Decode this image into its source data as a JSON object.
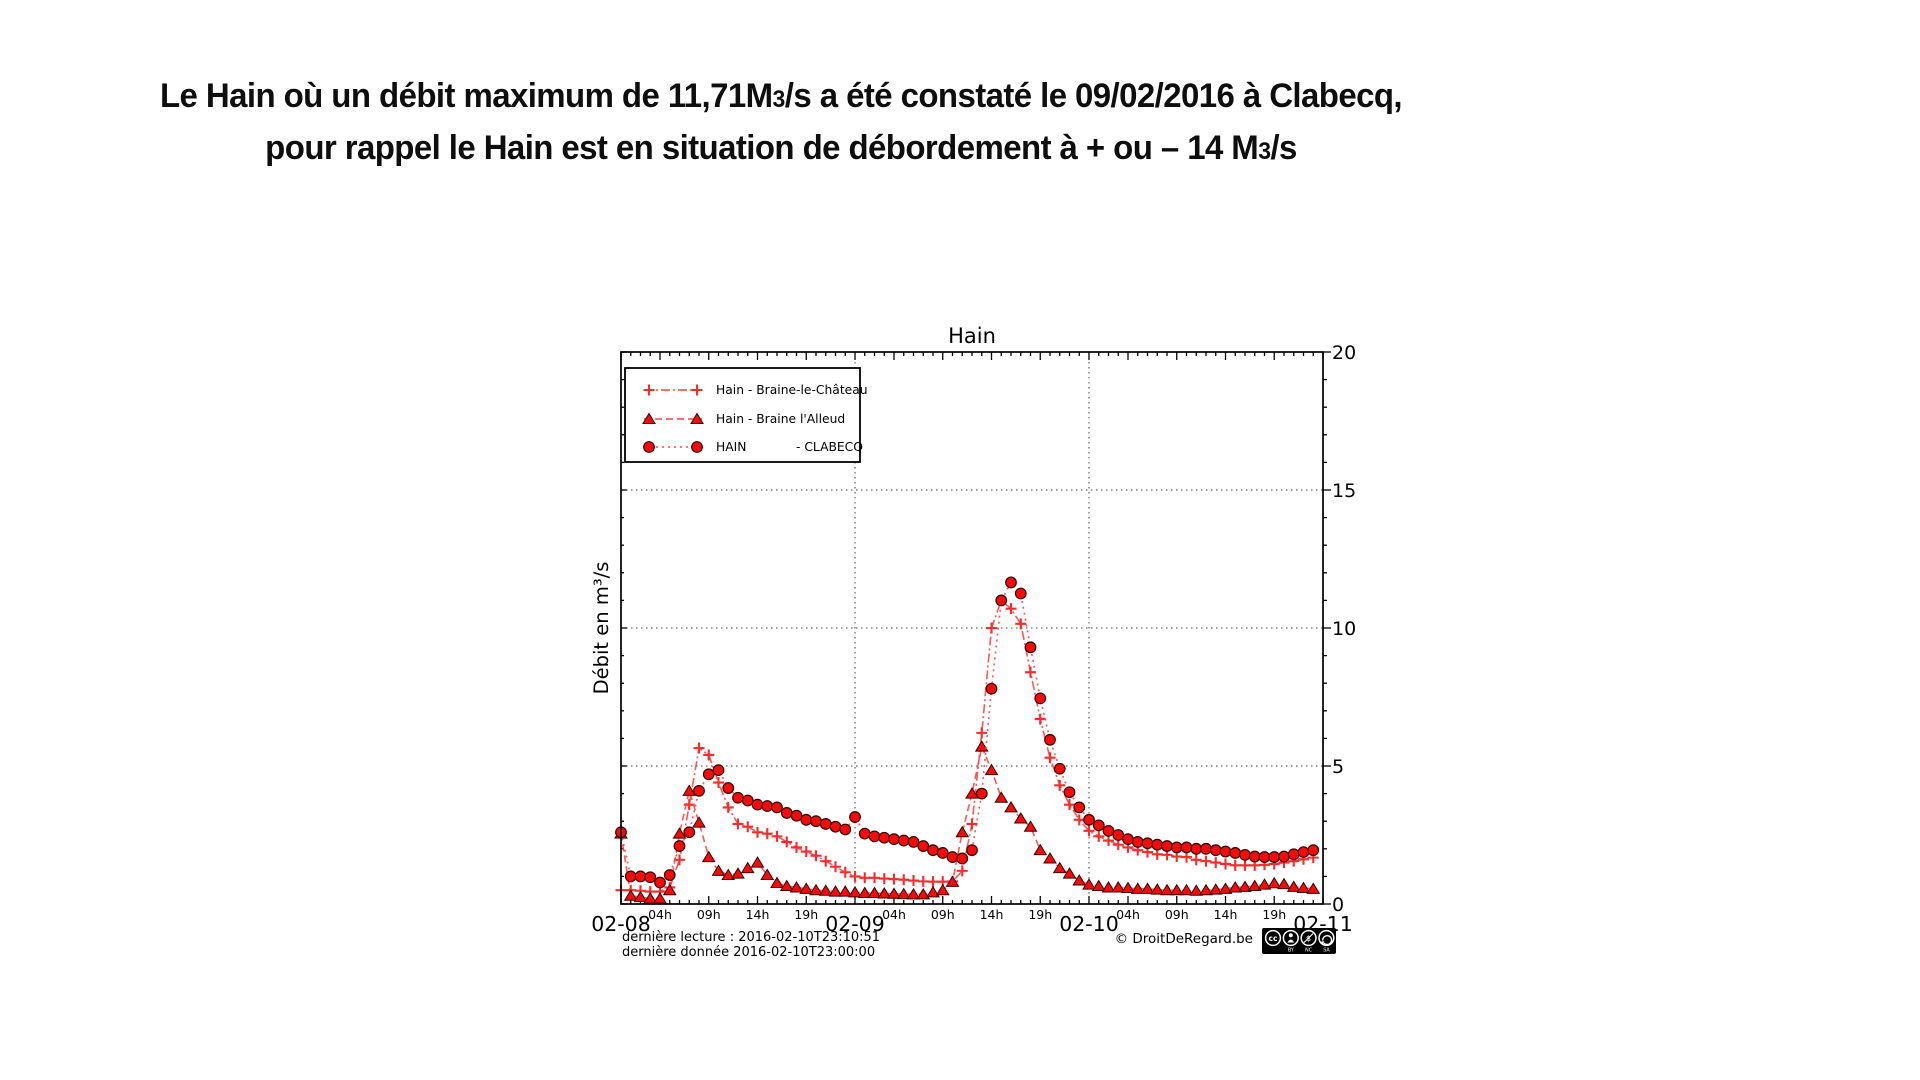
{
  "page_title": {
    "line1_pre": "Le Hain où un débit maximum de 11,71M",
    "line1_small": "3",
    "line1_post": "/s a été constaté le 09/02/2016 à Clabecq,",
    "line2_pre": "pour rappel le Hain est en situation de débordement à + ou – 14 M",
    "line2_small": "3",
    "line2_post": "/s"
  },
  "chart_data": {
    "type": "line",
    "title": "Hain",
    "ylabel": "Débit en m³/s",
    "ylim": [
      0,
      20
    ],
    "yticks": [
      0,
      5,
      10,
      15,
      20
    ],
    "grid": "dotted, major only, both axes",
    "legend_position": "upper left",
    "x_start_label": "02-08",
    "x_day_labels": [
      "02-08",
      "02-09",
      "02-10",
      "02-11"
    ],
    "x_hour_tick_labels": [
      "04h",
      "09h",
      "14h",
      "19h"
    ],
    "x_unit": "hours since 2016-02-08 00:00, 1 point per hour",
    "series": [
      {
        "name": "Hain - Braine-le-Château",
        "marker": "plus",
        "values": [
          0.5,
          0.5,
          0.48,
          0.45,
          0.45,
          0.6,
          1.6,
          3.6,
          5.65,
          5.4,
          4.4,
          3.5,
          2.9,
          2.8,
          2.6,
          2.55,
          2.45,
          2.25,
          2.05,
          1.9,
          1.75,
          1.55,
          1.35,
          1.15,
          1.0,
          0.95,
          0.95,
          0.92,
          0.9,
          0.88,
          0.85,
          0.82,
          0.81,
          0.81,
          0.82,
          1.2,
          2.9,
          6.2,
          10.0,
          11.0,
          10.7,
          10.15,
          8.4,
          6.7,
          5.3,
          4.3,
          3.6,
          3.05,
          2.65,
          2.45,
          2.3,
          2.15,
          2.05,
          1.95,
          1.88,
          1.8,
          1.78,
          1.72,
          1.7,
          1.6,
          1.55,
          1.5,
          1.45,
          1.4,
          1.4,
          1.4,
          1.42,
          1.45,
          1.5,
          1.55,
          1.62,
          1.68
        ]
      },
      {
        "name": "Hain - Braine l'Alleud",
        "marker": "triangle",
        "values": [
          2.55,
          0.3,
          0.25,
          0.2,
          0.2,
          0.5,
          2.55,
          4.1,
          2.95,
          1.7,
          1.2,
          1.05,
          1.1,
          1.3,
          1.5,
          1.05,
          0.76,
          0.65,
          0.6,
          0.55,
          0.5,
          0.48,
          0.45,
          0.45,
          0.42,
          0.4,
          0.4,
          0.38,
          0.37,
          0.36,
          0.35,
          0.35,
          0.42,
          0.5,
          0.8,
          2.6,
          4.0,
          5.7,
          4.85,
          3.85,
          3.5,
          3.1,
          2.8,
          1.95,
          1.65,
          1.3,
          1.1,
          0.85,
          0.7,
          0.65,
          0.6,
          0.6,
          0.58,
          0.55,
          0.55,
          0.52,
          0.5,
          0.5,
          0.5,
          0.48,
          0.5,
          0.52,
          0.55,
          0.6,
          0.62,
          0.65,
          0.7,
          0.75,
          0.72,
          0.62,
          0.58,
          0.55
        ]
      },
      {
        "name": "HAIN",
        "name2": "- CLABECQ",
        "marker": "circle",
        "values": [
          2.6,
          1.0,
          1.0,
          0.97,
          0.78,
          1.05,
          2.1,
          2.6,
          4.1,
          4.7,
          4.85,
          4.2,
          3.85,
          3.75,
          3.6,
          3.55,
          3.5,
          3.3,
          3.2,
          3.05,
          3.0,
          2.9,
          2.8,
          2.7,
          3.15,
          2.55,
          2.45,
          2.4,
          2.35,
          2.3,
          2.25,
          2.1,
          1.95,
          1.85,
          1.7,
          1.65,
          1.95,
          4.0,
          7.8,
          11.0,
          11.65,
          11.25,
          9.3,
          7.45,
          5.95,
          4.9,
          4.05,
          3.5,
          3.05,
          2.85,
          2.65,
          2.5,
          2.35,
          2.25,
          2.2,
          2.15,
          2.1,
          2.05,
          2.05,
          2.0,
          2.0,
          1.95,
          1.9,
          1.85,
          1.78,
          1.72,
          1.7,
          1.7,
          1.72,
          1.8,
          1.88,
          1.95
        ]
      }
    ],
    "colors": {
      "marker_fill": "#f20c0c",
      "marker_edge": "#3a0000",
      "line_red": "#ff4444",
      "plus_red": "#fb2b2b",
      "grid": "#444444",
      "frame": "#000000"
    }
  },
  "footer": {
    "last_read": "dernière lecture : 2016-02-10T23:10:51",
    "last_data": "dernière donnée  2016-02-10T23:00:00",
    "copyright": "© DroitDeRegard.be",
    "cc_badge": [
      "cc",
      "BY",
      "NC",
      "SA"
    ]
  }
}
